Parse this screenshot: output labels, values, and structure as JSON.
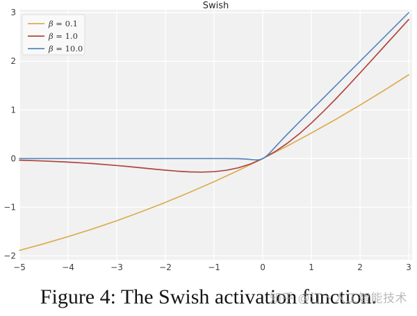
{
  "caption": "Figure 4: The Swish activation function.",
  "watermark": "知乎 @汀丶人工智能技术",
  "chart_data": {
    "type": "line",
    "title": "Swish",
    "xlabel": "",
    "ylabel": "",
    "xlim": [
      -5,
      3.07
    ],
    "ylim": [
      -2.08,
      3.06
    ],
    "x_ticks": [
      -5,
      -4,
      -3,
      -2,
      -1,
      0,
      1,
      2,
      3
    ],
    "y_ticks": [
      -2,
      -1,
      0,
      1,
      2,
      3
    ],
    "grid": true,
    "plot_bg": "#f1f1f1",
    "grid_color": "#ffffff",
    "tick_color": "#3d3d3d",
    "title_color": "#262626",
    "legend_position": "upper-left",
    "legend_bg": "#fafafa",
    "legend_border": "#dddddd",
    "series": [
      {
        "name": "β = 0.1",
        "color": "#ddab4f",
        "x": [
          -5,
          -4.5,
          -4,
          -3.5,
          -3,
          -2.5,
          -2,
          -1.5,
          -1,
          -0.5,
          0,
          0.5,
          1,
          1.5,
          2,
          2.5,
          3
        ],
        "y": [
          -1.888,
          -1.752,
          -1.605,
          -1.447,
          -1.277,
          -1.095,
          -0.9,
          -0.694,
          -0.475,
          -0.244,
          0,
          0.256,
          0.525,
          0.806,
          1.1,
          1.405,
          1.723
        ]
      },
      {
        "name": "β = 1.0",
        "color": "#b0453c",
        "x": [
          -5,
          -4.5,
          -4,
          -3.5,
          -3,
          -2.75,
          -2.5,
          -2.25,
          -2,
          -1.75,
          -1.5,
          -1.25,
          -1,
          -0.75,
          -0.5,
          -0.25,
          0,
          0.25,
          0.5,
          0.75,
          1,
          1.25,
          1.5,
          1.75,
          2,
          2.25,
          2.5,
          2.75,
          3
        ],
        "y": [
          -0.033,
          -0.049,
          -0.072,
          -0.103,
          -0.142,
          -0.165,
          -0.19,
          -0.215,
          -0.238,
          -0.259,
          -0.274,
          -0.278,
          -0.269,
          -0.241,
          -0.189,
          -0.109,
          0,
          0.141,
          0.311,
          0.509,
          0.731,
          0.972,
          1.226,
          1.491,
          1.762,
          2.035,
          2.31,
          2.585,
          2.858
        ]
      },
      {
        "name": "β = 10.0",
        "color": "#5585bf",
        "x": [
          -5,
          -4,
          -3,
          -2,
          -1.5,
          -1,
          -0.75,
          -0.5,
          -0.35,
          -0.25,
          -0.2,
          -0.15,
          -0.1,
          -0.05,
          0,
          0.05,
          0.1,
          0.15,
          0.2,
          0.3,
          0.4,
          0.5,
          0.75,
          1,
          1.5,
          2,
          2.5,
          3
        ],
        "y": [
          0,
          0,
          0,
          0,
          0,
          0,
          0,
          -0.003,
          -0.01,
          -0.019,
          -0.024,
          -0.027,
          -0.027,
          -0.019,
          0,
          0.031,
          0.073,
          0.123,
          0.176,
          0.286,
          0.393,
          0.497,
          0.75,
          1,
          1.5,
          2,
          2.5,
          3
        ]
      }
    ]
  }
}
